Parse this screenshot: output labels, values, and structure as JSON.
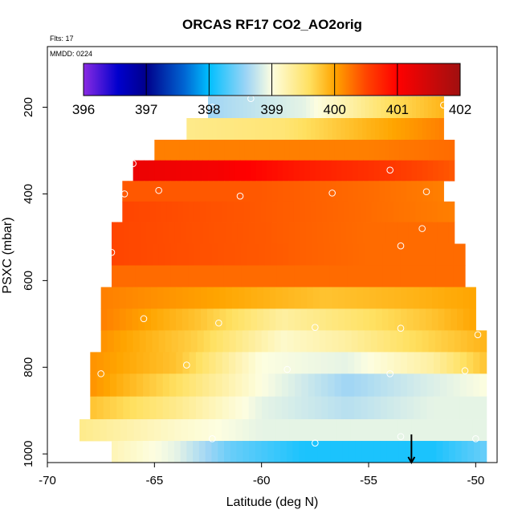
{
  "chart_data": {
    "type": "heatmap",
    "title": "ORCAS RF17 CO2_AO2orig",
    "flights_label": "Flts: 17",
    "date_label": "MMDD: 0224",
    "xlabel": "Latitude (deg N)",
    "ylabel": "PSXC (mbar)",
    "xlim": [
      -70,
      -49
    ],
    "ylim": [
      1020,
      60
    ],
    "x_ticks": [
      -70,
      -65,
      -60,
      -55,
      -50
    ],
    "x_tick_labels": [
      "-70",
      "-65",
      "-60",
      "-55",
      "-50"
    ],
    "y_ticks": [
      200,
      400,
      600,
      800,
      1000
    ],
    "y_tick_labels": [
      "200",
      "400",
      "600",
      "800",
      "1000"
    ],
    "colorbar": {
      "min": 396,
      "max": 402,
      "ticks": [
        396,
        397,
        398,
        399,
        400,
        401,
        402
      ],
      "tick_labels": [
        "396",
        "397",
        "398",
        "399",
        "400",
        "401",
        "402"
      ],
      "colors": [
        "#8a2be2",
        "#0000cd",
        "#00008b",
        "#0064d2",
        "#00bfff",
        "#9fd5f5",
        "#fdfee0",
        "#ffe060",
        "#ffa500",
        "#ff4500",
        "#ff0000",
        "#a01010"
      ],
      "stops": [
        396.0,
        396.55,
        397.0,
        397.6,
        398.0,
        398.6,
        399.0,
        399.6,
        400.0,
        400.5,
        401.0,
        402.0
      ]
    },
    "layers": [
      {
        "p": 200,
        "lat_min": -62.5,
        "lat_max": -51.5,
        "w": [
          -62.5,
          -58,
          -54,
          -51.5
        ],
        "v": [
          398.6,
          398.9,
          399.6,
          399.9
        ]
      },
      {
        "p": 250,
        "lat_min": -63.5,
        "lat_max": -51.5,
        "w": [
          -63.5,
          -59,
          -55,
          -51.5
        ],
        "v": [
          399.4,
          399.5,
          399.9,
          400.2
        ]
      },
      {
        "p": 300,
        "lat_min": -65.0,
        "lat_max": -51.0,
        "w": [
          -65,
          -60,
          -55,
          -51
        ],
        "v": [
          400.2,
          400.2,
          400.2,
          400.3
        ]
      },
      {
        "p": 345,
        "lat_min": -66.0,
        "lat_max": -51.0,
        "w": [
          -66,
          -62,
          -58,
          -54,
          -51
        ],
        "v": [
          401.2,
          401.1,
          400.8,
          400.6,
          400.4
        ]
      },
      {
        "p": 395,
        "lat_min": -66.5,
        "lat_max": -51.5,
        "w": [
          -66.5,
          -60,
          -55,
          -51.5
        ],
        "v": [
          400.4,
          400.4,
          400.3,
          400.2
        ]
      },
      {
        "p": 440,
        "lat_min": -66.5,
        "lat_max": -51.0,
        "w": [
          -66.5,
          -60,
          -55,
          -51
        ],
        "v": [
          400.5,
          400.4,
          400.3,
          400.2
        ]
      },
      {
        "p": 490,
        "lat_min": -67.0,
        "lat_max": -51.0,
        "w": [
          -67,
          -60,
          -55,
          -51
        ],
        "v": [
          400.5,
          400.4,
          400.3,
          400.3
        ]
      },
      {
        "p": 540,
        "lat_min": -67.0,
        "lat_max": -50.5,
        "w": [
          -67,
          -60,
          -55,
          -50.5
        ],
        "v": [
          400.5,
          400.4,
          400.3,
          400.3
        ]
      },
      {
        "p": 590,
        "lat_min": -67.0,
        "lat_max": -50.5,
        "w": [
          -67,
          -60,
          -55,
          -50.5
        ],
        "v": [
          400.3,
          400.3,
          400.3,
          400.3
        ]
      },
      {
        "p": 640,
        "lat_min": -67.5,
        "lat_max": -50.0,
        "w": [
          -67.5,
          -62,
          -57,
          -53,
          -50
        ],
        "v": [
          400.2,
          400.0,
          399.8,
          399.9,
          400.0
        ]
      },
      {
        "p": 690,
        "lat_min": -67.5,
        "lat_max": -50.0,
        "w": [
          -67.5,
          -63,
          -59,
          -56,
          -52,
          -50
        ],
        "v": [
          400.2,
          399.8,
          399.3,
          399.5,
          399.8,
          400.0
        ]
      },
      {
        "p": 740,
        "lat_min": -67.5,
        "lat_max": -49.5,
        "w": [
          -67.5,
          -63,
          -59,
          -56,
          -53,
          -49.5
        ],
        "v": [
          400.1,
          399.7,
          399.1,
          399.3,
          399.6,
          399.9
        ]
      },
      {
        "p": 790,
        "lat_min": -68.0,
        "lat_max": -49.5,
        "w": [
          -68,
          -64,
          -60,
          -56,
          -52,
          -49.5
        ],
        "v": [
          400.1,
          399.8,
          399.0,
          398.9,
          399.3,
          399.8
        ]
      },
      {
        "p": 840,
        "lat_min": -68.0,
        "lat_max": -49.5,
        "w": [
          -68,
          -64,
          -60,
          -56,
          -53,
          -49.5
        ],
        "v": [
          400.1,
          399.6,
          399.0,
          398.6,
          398.8,
          399.0
        ]
      },
      {
        "p": 895,
        "lat_min": -68.0,
        "lat_max": -49.5,
        "w": [
          -68,
          -64,
          -60,
          -56,
          -52,
          -49.5
        ],
        "v": [
          399.8,
          399.4,
          398.9,
          398.7,
          398.9,
          398.9
        ]
      },
      {
        "p": 945,
        "lat_min": -68.5,
        "lat_max": -49.5,
        "w": [
          -68.5,
          -64,
          -60,
          -56,
          -52,
          -49.5
        ],
        "v": [
          399.4,
          399.1,
          398.9,
          398.9,
          398.9,
          398.9
        ]
      },
      {
        "p": 995,
        "lat_min": -67.0,
        "lat_max": -49.5,
        "w": [
          -67,
          -64,
          -61.5,
          -58,
          -55,
          -52,
          -49.5
        ],
        "v": [
          399.2,
          398.9,
          398.4,
          398.1,
          398.1,
          398.1,
          398.4
        ]
      }
    ],
    "sample_points": [
      {
        "lat": -60.5,
        "p": 180
      },
      {
        "lat": -62.3,
        "p": 200
      },
      {
        "lat": -51.5,
        "p": 195
      },
      {
        "lat": -66.0,
        "p": 330
      },
      {
        "lat": -54.0,
        "p": 345
      },
      {
        "lat": -66.4,
        "p": 400
      },
      {
        "lat": -64.8,
        "p": 392
      },
      {
        "lat": -61.0,
        "p": 405
      },
      {
        "lat": -56.7,
        "p": 398
      },
      {
        "lat": -52.3,
        "p": 395
      },
      {
        "lat": -52.5,
        "p": 480
      },
      {
        "lat": -53.5,
        "p": 520
      },
      {
        "lat": -67.0,
        "p": 535
      },
      {
        "lat": -65.5,
        "p": 688
      },
      {
        "lat": -62.0,
        "p": 698
      },
      {
        "lat": -57.5,
        "p": 708
      },
      {
        "lat": -53.5,
        "p": 710
      },
      {
        "lat": -67.8,
        "p": 740
      },
      {
        "lat": -49.9,
        "p": 725
      },
      {
        "lat": -63.5,
        "p": 795
      },
      {
        "lat": -58.8,
        "p": 805
      },
      {
        "lat": -54.0,
        "p": 815
      },
      {
        "lat": -50.5,
        "p": 808
      },
      {
        "lat": -67.5,
        "p": 815
      },
      {
        "lat": -62.3,
        "p": 965
      },
      {
        "lat": -57.5,
        "p": 975
      },
      {
        "lat": -53.5,
        "p": 960
      },
      {
        "lat": -50.0,
        "p": 965
      }
    ],
    "arrow": {
      "lat": -53.0,
      "p_start": 955,
      "p_end": 1020
    }
  }
}
